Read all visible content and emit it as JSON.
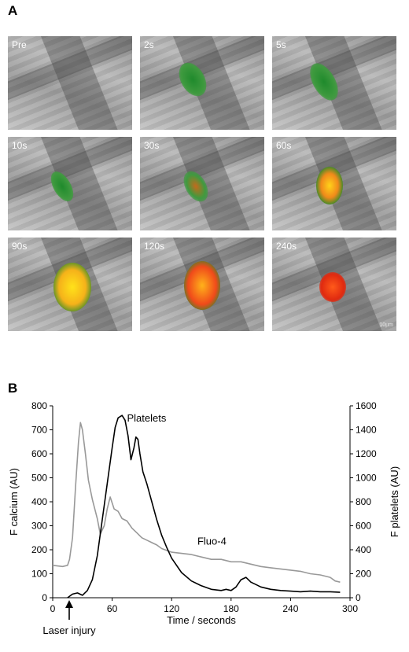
{
  "panel_a": {
    "letter": "A",
    "frames": [
      {
        "label": "Pre"
      },
      {
        "label": "2s"
      },
      {
        "label": "5s"
      },
      {
        "label": "10s"
      },
      {
        "label": "30s"
      },
      {
        "label": "60s"
      },
      {
        "label": "90s"
      },
      {
        "label": "120s"
      },
      {
        "label": "240s"
      }
    ],
    "scale_bar_label": "10μm"
  },
  "panel_b": {
    "letter": "B",
    "arrow_label": "Laser injury"
  },
  "chart_data": {
    "type": "line",
    "xlabel": "Time / seconds",
    "ylabel_left": "F calcium (AU)",
    "ylabel_right": "F platelets (AU)",
    "xlim": [
      0,
      300
    ],
    "ylim_left": [
      0,
      800
    ],
    "ylim_right": [
      0,
      1600
    ],
    "xticks": [
      "0",
      "60",
      "120",
      "180",
      "240",
      "300"
    ],
    "yticks_left": [
      "0",
      "100",
      "200",
      "300",
      "400",
      "500",
      "600",
      "700",
      "800"
    ],
    "yticks_right": [
      "0",
      "200",
      "400",
      "600",
      "800",
      "1000",
      "1200",
      "1400",
      "1600"
    ],
    "series": [
      {
        "name": "Fluo-4",
        "axis": "left",
        "color": "#999999",
        "x": [
          0,
          10,
          15,
          17,
          20,
          23,
          26,
          28,
          30,
          33,
          36,
          40,
          45,
          48,
          52,
          55,
          58,
          62,
          66,
          70,
          75,
          80,
          85,
          90,
          95,
          100,
          105,
          110,
          120,
          130,
          140,
          150,
          160,
          170,
          180,
          190,
          200,
          210,
          220,
          230,
          240,
          250,
          260,
          270,
          280,
          285,
          290
        ],
        "values": [
          135,
          130,
          135,
          160,
          250,
          460,
          650,
          730,
          700,
          600,
          490,
          410,
          330,
          265,
          300,
          370,
          420,
          370,
          360,
          330,
          320,
          290,
          270,
          250,
          240,
          230,
          220,
          205,
          190,
          185,
          180,
          170,
          160,
          160,
          150,
          150,
          140,
          130,
          125,
          120,
          115,
          110,
          100,
          95,
          85,
          70,
          65
        ]
      },
      {
        "name": "Platelets",
        "axis": "right",
        "color": "#000000",
        "x": [
          15,
          20,
          25,
          30,
          35,
          40,
          45,
          50,
          55,
          60,
          63,
          66,
          70,
          73,
          76,
          79,
          82,
          84,
          86,
          88,
          91,
          95,
          100,
          105,
          110,
          115,
          120,
          130,
          140,
          150,
          160,
          170,
          175,
          180,
          185,
          190,
          195,
          200,
          205,
          210,
          220,
          230,
          240,
          250,
          260,
          270,
          280,
          290
        ],
        "values": [
          0,
          30,
          40,
          20,
          60,
          150,
          350,
          650,
          950,
          1250,
          1420,
          1500,
          1520,
          1480,
          1350,
          1150,
          1250,
          1340,
          1320,
          1200,
          1050,
          950,
          800,
          650,
          520,
          420,
          330,
          210,
          140,
          100,
          70,
          60,
          70,
          60,
          90,
          150,
          170,
          130,
          110,
          90,
          70,
          60,
          55,
          50,
          55,
          50,
          50,
          45
        ]
      }
    ],
    "annotations": [
      "Platelets",
      "Fluo-4"
    ]
  }
}
